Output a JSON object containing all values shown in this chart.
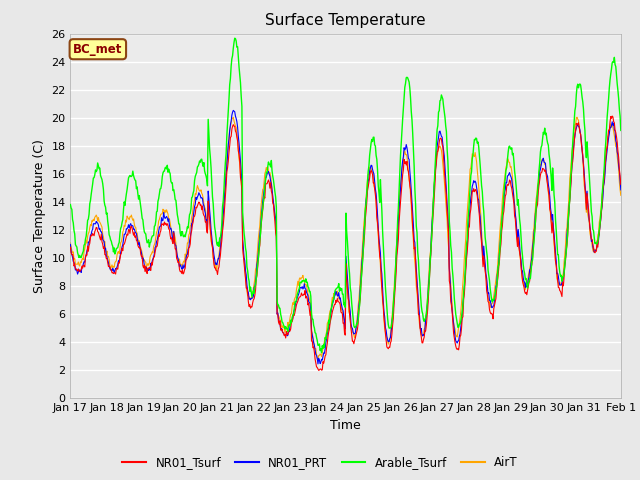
{
  "title": "Surface Temperature",
  "ylabel": "Surface Temperature (C)",
  "xlabel": "Time",
  "ylim": [
    0,
    26
  ],
  "yticks": [
    0,
    2,
    4,
    6,
    8,
    10,
    12,
    14,
    16,
    18,
    20,
    22,
    24,
    26
  ],
  "xtick_labels": [
    "Jan 17",
    "Jan 18",
    "Jan 19",
    "Jan 20",
    "Jan 21",
    "Jan 22",
    "Jan 23",
    "Jan 24",
    "Jan 25",
    "Jan 26",
    "Jan 27",
    "Jan 28",
    "Jan 29",
    "Jan 30",
    "Jan 31",
    "Feb 1"
  ],
  "annotation_text": "BC_met",
  "annotation_bg": "#FFFF99",
  "annotation_border": "#8B4513",
  "line_colors": {
    "NR01_Tsurf": "#FF0000",
    "NR01_PRT": "#0000FF",
    "Arable_Tsurf": "#00FF00",
    "AirT": "#FFA500"
  },
  "line_widths": {
    "NR01_Tsurf": 0.8,
    "NR01_PRT": 0.8,
    "Arable_Tsurf": 1.0,
    "AirT": 0.8
  },
  "bg_color": "#E8E8E8",
  "plot_bg": "#EBEBEB",
  "title_fontsize": 11,
  "axis_fontsize": 9,
  "tick_fontsize": 8
}
